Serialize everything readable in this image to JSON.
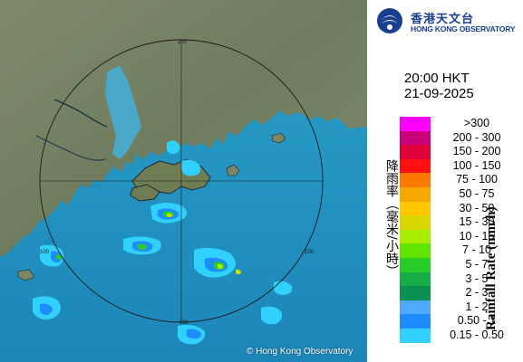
{
  "map": {
    "range_ring_labels": [
      "200",
      "100",
      "100",
      "100"
    ],
    "copyright": "© Hong Kong Observatory"
  },
  "header": {
    "logo_zh": "香港天文台",
    "logo_en": "HONG KONG OBSERVATORY",
    "logo_icon": "hko-logo-icon",
    "brand_color": "#1b3f8f"
  },
  "timestamp": {
    "time": "20:00 HKT",
    "date": "21-09-2025"
  },
  "legend": {
    "title_zh": "降雨率（毫米/小時）",
    "title_en": "Rainfall Rate (mm/h)",
    "items": [
      {
        "label": ">300",
        "color": "#ff00ff"
      },
      {
        "label": "200 - 300",
        "color": "#c8007a"
      },
      {
        "label": "150 - 200",
        "color": "#e0003a"
      },
      {
        "label": "100 - 150",
        "color": "#ff1010"
      },
      {
        "label": "75 - 100",
        "color": "#ff7800"
      },
      {
        "label": "50 - 75",
        "color": "#f5a800"
      },
      {
        "label": "30 - 50",
        "color": "#ffc800"
      },
      {
        "label": "15 - 30",
        "color": "#d8d800"
      },
      {
        "label": "10 - 15",
        "color": "#a8ec00"
      },
      {
        "label": "7 - 10",
        "color": "#60e400"
      },
      {
        "label": "5 - 7",
        "color": "#28cc28"
      },
      {
        "label": "3 - 5",
        "color": "#18ac48"
      },
      {
        "label": "2 - 3",
        "color": "#0a9050"
      },
      {
        "label": "1 - 2",
        "color": "#50a8ff"
      },
      {
        "label": "0.50 - 1",
        "color": "#1e8cff"
      },
      {
        "label": "0.15 - 0.50",
        "color": "#30d0ff"
      }
    ]
  }
}
